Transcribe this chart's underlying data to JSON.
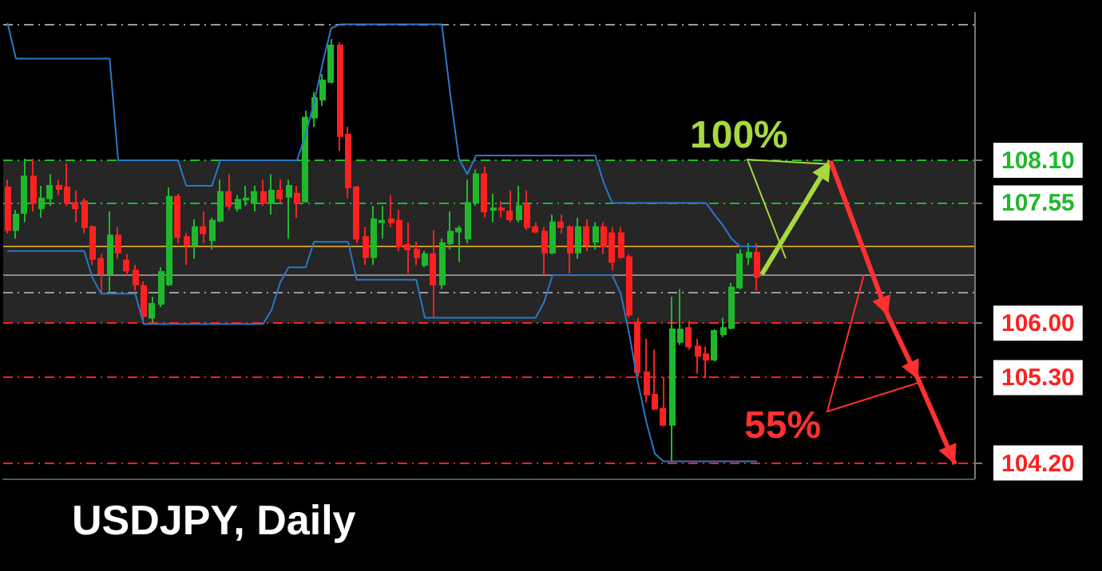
{
  "chart_data": {
    "type": "candlestick",
    "title": "USDJPY, Daily",
    "categories": [
      null,
      null,
      null,
      null,
      null,
      null,
      null,
      null,
      null,
      null,
      null,
      null,
      null,
      null,
      null,
      null,
      null,
      null,
      null,
      null,
      null,
      null,
      null,
      null,
      null,
      null,
      null,
      null,
      null,
      null,
      null,
      null,
      null,
      null,
      null,
      null,
      null,
      null,
      null,
      null,
      null,
      null,
      null,
      null,
      null,
      null,
      null,
      null,
      null,
      null,
      null,
      null,
      null,
      null,
      null,
      null,
      null,
      null,
      null,
      null,
      null,
      null,
      null,
      null,
      null,
      null,
      null,
      null,
      null,
      null,
      null,
      null,
      null,
      null,
      null,
      null,
      null,
      null,
      null,
      null,
      null,
      null,
      null,
      null,
      null,
      null,
      null,
      null,
      null
    ],
    "ohlc": [
      [
        107.75,
        107.85,
        107.16,
        107.2
      ],
      [
        107.2,
        107.46,
        107.09,
        107.4
      ],
      [
        107.42,
        108.12,
        107.3,
        107.89
      ],
      [
        107.89,
        108.12,
        107.44,
        107.55
      ],
      [
        107.48,
        107.77,
        107.36,
        107.61
      ],
      [
        107.61,
        107.92,
        107.51,
        107.77
      ],
      [
        107.77,
        107.85,
        107.65,
        107.73
      ],
      [
        107.75,
        108.06,
        107.51,
        107.55
      ],
      [
        107.55,
        107.71,
        107.3,
        107.48
      ],
      [
        107.57,
        107.61,
        107.16,
        107.24
      ],
      [
        107.24,
        107.26,
        106.75,
        106.83
      ],
      [
        106.83,
        106.89,
        106.38,
        106.64
      ],
      [
        106.64,
        107.44,
        106.38,
        107.13
      ],
      [
        107.13,
        107.24,
        106.83,
        106.91
      ],
      [
        106.81,
        106.89,
        106.62,
        106.68
      ],
      [
        106.68,
        106.75,
        106.42,
        106.5
      ],
      [
        106.48,
        106.54,
        106.01,
        106.09
      ],
      [
        106.07,
        106.34,
        106.01,
        106.25
      ],
      [
        106.25,
        106.72,
        106.21,
        106.66
      ],
      [
        106.5,
        107.75,
        106.48,
        107.63
      ],
      [
        107.63,
        107.67,
        107.03,
        107.11
      ],
      [
        107.11,
        107.16,
        106.75,
        107.01
      ],
      [
        107.01,
        107.34,
        106.83,
        107.24
      ],
      [
        107.24,
        107.44,
        107.03,
        107.16
      ],
      [
        107.07,
        107.36,
        106.95,
        107.32
      ],
      [
        107.32,
        107.85,
        107.3,
        107.69
      ],
      [
        107.69,
        107.92,
        107.46,
        107.51
      ],
      [
        107.48,
        107.65,
        107.44,
        107.59
      ],
      [
        107.59,
        107.77,
        107.51,
        107.61
      ],
      [
        107.55,
        107.77,
        107.44,
        107.69
      ],
      [
        107.69,
        107.85,
        107.51,
        107.55
      ],
      [
        107.55,
        107.92,
        107.4,
        107.71
      ],
      [
        107.71,
        107.85,
        107.55,
        107.61
      ],
      [
        107.63,
        107.85,
        107.09,
        107.77
      ],
      [
        107.67,
        107.77,
        107.36,
        107.55
      ],
      [
        107.57,
        108.74,
        107.55,
        108.65
      ],
      [
        108.65,
        108.98,
        108.53,
        108.9
      ],
      [
        108.88,
        109.21,
        108.8,
        109.13
      ],
      [
        109.11,
        109.66,
        109.09,
        109.58
      ],
      [
        109.58,
        109.62,
        108.22,
        108.41
      ],
      [
        108.43,
        108.53,
        107.61,
        107.75
      ],
      [
        107.75,
        107.77,
        107.03,
        107.09
      ],
      [
        107.11,
        107.24,
        106.75,
        106.85
      ],
      [
        106.85,
        107.51,
        106.75,
        107.34
      ],
      [
        107.3,
        107.51,
        107.09,
        107.32
      ],
      [
        107.34,
        107.65,
        107.24,
        107.3
      ],
      [
        107.32,
        107.46,
        106.93,
        106.99
      ],
      [
        107.01,
        107.3,
        106.64,
        106.95
      ],
      [
        106.95,
        107.05,
        106.75,
        106.85
      ],
      [
        106.75,
        106.93,
        106.72,
        106.89
      ],
      [
        106.89,
        107.2,
        106.07,
        106.5
      ],
      [
        106.5,
        107.09,
        106.44,
        107.03
      ],
      [
        107.03,
        107.44,
        106.95,
        107.18
      ],
      [
        107.18,
        107.26,
        106.79,
        107.22
      ],
      [
        107.09,
        107.85,
        107.03,
        107.55
      ],
      [
        107.55,
        107.98,
        107.51,
        107.92
      ],
      [
        107.92,
        108.02,
        107.36,
        107.44
      ],
      [
        107.46,
        107.67,
        107.3,
        107.48
      ],
      [
        107.48,
        107.57,
        107.36,
        107.46
      ],
      [
        107.44,
        107.71,
        107.3,
        107.34
      ],
      [
        107.34,
        107.77,
        107.3,
        107.51
      ],
      [
        107.53,
        107.71,
        107.2,
        107.24
      ],
      [
        107.24,
        107.3,
        107.16,
        107.18
      ],
      [
        107.18,
        107.24,
        106.62,
        106.91
      ],
      [
        106.91,
        107.4,
        106.89,
        107.3
      ],
      [
        107.3,
        107.4,
        107.16,
        107.24
      ],
      [
        107.24,
        107.26,
        106.64,
        106.91
      ],
      [
        106.91,
        107.36,
        106.83,
        107.24
      ],
      [
        107.24,
        107.34,
        106.93,
        107.01
      ],
      [
        107.05,
        107.3,
        106.95,
        107.24
      ],
      [
        107.24,
        107.3,
        106.89,
        106.99
      ],
      [
        107.16,
        107.24,
        106.68,
        106.79
      ],
      [
        107.16,
        107.24,
        106.83,
        106.85
      ],
      [
        106.85,
        106.89,
        106.07,
        106.11
      ],
      [
        106.01,
        106.07,
        105.31,
        105.37
      ],
      [
        105.37,
        105.8,
        104.98,
        105.08
      ],
      [
        105.08,
        105.66,
        104.88,
        104.9
      ],
      [
        104.9,
        105.31,
        104.67,
        104.69
      ],
      [
        104.69,
        106.34,
        104.22,
        105.92
      ],
      [
        105.76,
        106.44,
        105.72,
        105.92
      ],
      [
        105.94,
        106.03,
        105.66,
        105.7
      ],
      [
        105.7,
        105.8,
        105.35,
        105.58
      ],
      [
        105.6,
        105.7,
        105.29,
        105.53
      ],
      [
        105.53,
        105.92,
        105.51,
        105.9
      ],
      [
        105.86,
        106.07,
        105.82,
        105.94
      ],
      [
        105.94,
        106.52,
        105.92,
        106.46
      ],
      [
        106.46,
        106.95,
        106.44,
        106.89
      ],
      [
        106.85,
        107.03,
        106.75,
        106.91
      ],
      [
        106.91,
        107.03,
        106.42,
        106.6
      ]
    ],
    "series": [
      {
        "type": "line",
        "color": "#2a78c8",
        "values": [
          109.87,
          109.41,
          109.41,
          109.41,
          109.41,
          109.41,
          109.41,
          109.41,
          109.41,
          109.41,
          109.41,
          109.41,
          109.41,
          108.1,
          108.1,
          108.1,
          108.1,
          108.1,
          108.1,
          108.1,
          108.1,
          107.77,
          107.77,
          107.77,
          107.77,
          108.1,
          108.1,
          108.1,
          108.1,
          108.1,
          108.1,
          108.1,
          108.1,
          108.1,
          108.1,
          108.43,
          108.84,
          109.35,
          109.8,
          109.85,
          109.85,
          109.85,
          109.85,
          109.85,
          109.85,
          109.85,
          109.85,
          109.85,
          109.85,
          109.85,
          109.85,
          109.85,
          108.94,
          108.12,
          107.92,
          108.16,
          108.16,
          108.16,
          108.16,
          108.16,
          108.16,
          108.16,
          108.16,
          108.16,
          108.16,
          108.16,
          108.16,
          108.16,
          108.16,
          108.16,
          107.81,
          107.55,
          107.55,
          107.55,
          107.55,
          107.55,
          107.55,
          107.55,
          107.55,
          107.55,
          107.55,
          107.55,
          107.55,
          107.4,
          107.26,
          107.09,
          106.99,
          106.99,
          106.99
        ]
      },
      {
        "type": "line",
        "color": "#2a78c8",
        "values": [
          106.93,
          106.93,
          106.93,
          106.93,
          106.93,
          106.93,
          106.93,
          106.93,
          106.93,
          106.93,
          106.58,
          106.38,
          106.38,
          106.38,
          106.38,
          106.38,
          105.99,
          105.99,
          105.99,
          105.99,
          105.99,
          105.99,
          105.99,
          105.99,
          105.99,
          105.99,
          105.99,
          105.99,
          105.99,
          105.99,
          105.99,
          106.17,
          106.52,
          106.72,
          106.72,
          106.72,
          107.05,
          107.05,
          107.05,
          107.05,
          107.05,
          106.56,
          106.56,
          106.56,
          106.56,
          106.56,
          106.56,
          106.56,
          106.56,
          106.07,
          106.07,
          106.07,
          106.07,
          106.07,
          106.07,
          106.07,
          106.07,
          106.07,
          106.07,
          106.07,
          106.07,
          106.07,
          106.07,
          106.27,
          106.62,
          106.62,
          106.62,
          106.62,
          106.62,
          106.62,
          106.62,
          106.62,
          106.38,
          105.86,
          105.25,
          104.73,
          104.32,
          104.22,
          104.22,
          104.22,
          104.22,
          104.22,
          104.22,
          104.22,
          104.22,
          104.22,
          104.22,
          104.22,
          104.22
        ]
      }
    ],
    "ylim": [
      104.0,
      110.0
    ],
    "tick_labels": "y",
    "yticks": [
      {
        "value": 108.1,
        "label": "108.10"
      },
      {
        "value": 107.55,
        "label": "107.55"
      },
      {
        "value": 106.0,
        "label": "106.00"
      },
      {
        "value": 105.3,
        "label": "105.30"
      },
      {
        "value": 104.2,
        "label": "104.20"
      }
    ],
    "ref_lines": [
      {
        "axis": "y",
        "value": 109.85,
        "line_style": "dashed"
      },
      {
        "axis": "y",
        "value": 108.1,
        "color": "#1fb82c",
        "line_style": "dashed"
      },
      {
        "axis": "y",
        "value": 107.55,
        "color": "#1fb82c",
        "line_style": "dashed"
      },
      {
        "axis": "y",
        "value": 106.99,
        "color": "#c8961e",
        "line_style": "solid"
      },
      {
        "axis": "y",
        "value": 106.62,
        "color": "#8a8a8a",
        "line_style": "solid"
      },
      {
        "axis": "y",
        "value": 106.4,
        "line_style": "dashed"
      },
      {
        "axis": "y",
        "value": 106.0,
        "color": "#ff2020",
        "line_style": "dashed"
      },
      {
        "axis": "y",
        "value": 105.3,
        "color": "#ff2020",
        "line_style": "dashed"
      },
      {
        "axis": "y",
        "value": 104.2,
        "color": "#ff2020",
        "line_style": "dashed"
      }
    ],
    "bands": [
      {
        "axis": "y",
        "from": 106.0,
        "to": 108.1,
        "color": "#262626"
      }
    ],
    "annotations": [
      "100%",
      "55%"
    ]
  }
}
